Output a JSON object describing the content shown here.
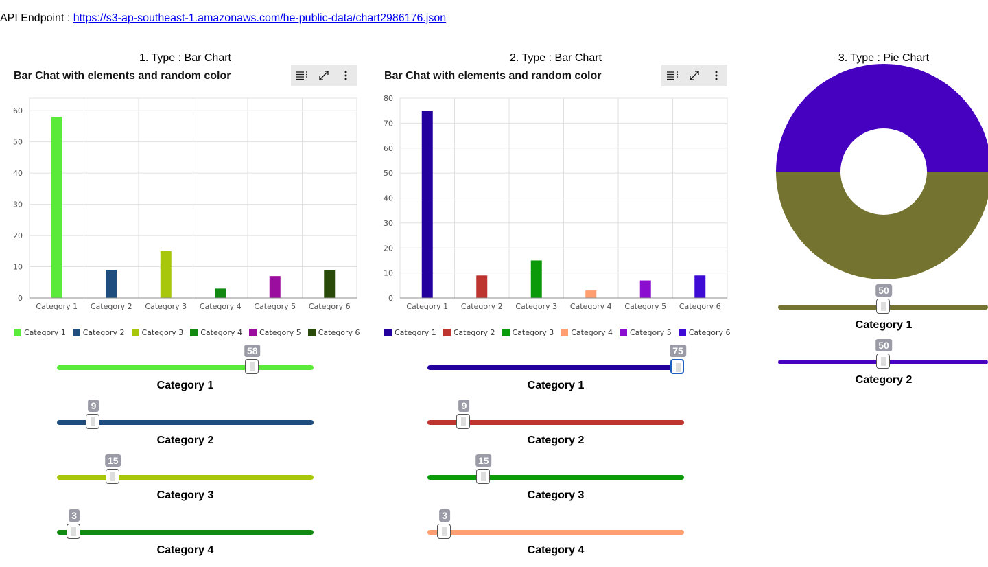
{
  "api": {
    "label": "API Endpoint : ",
    "url": "https://s3-ap-southeast-1.amazonaws.com/he-public-data/chart2986176.json"
  },
  "charts": [
    {
      "type_title": "1. Type : Bar Chart",
      "title": "Bar Chat with elements and random color",
      "toolbar": {
        "icons": [
          "table-icon",
          "expand-icon",
          "overflow-menu-icon"
        ]
      },
      "chart_data": {
        "type": "bar",
        "title": "Bar Chat with elements and random color",
        "categories": [
          "Category 1",
          "Category 2",
          "Category 3",
          "Category 4",
          "Category 5",
          "Category 6"
        ],
        "values": [
          58,
          9,
          15,
          3,
          7,
          9
        ],
        "colors": [
          "#5aeb3a",
          "#1f4e7e",
          "#a9c70a",
          "#128a12",
          "#9b0d9e",
          "#2a4a0a"
        ],
        "ylim": [
          0,
          64
        ],
        "yticks": [
          0,
          10,
          20,
          30,
          40,
          50,
          60
        ],
        "grid": true,
        "legend": "bottom-left"
      }
    },
    {
      "type_title": "2. Type : Bar Chart",
      "title": "Bar Chat with elements and random color",
      "toolbar": {
        "icons": [
          "table-icon",
          "expand-icon",
          "overflow-menu-icon"
        ]
      },
      "chart_data": {
        "type": "bar",
        "title": "Bar Chat with elements and random color",
        "categories": [
          "Category 1",
          "Category 2",
          "Category 3",
          "Category 4",
          "Category 5",
          "Category 6"
        ],
        "values": [
          75,
          9,
          15,
          3,
          7,
          9
        ],
        "colors": [
          "#23009e",
          "#be3530",
          "#0a9a0a",
          "#ff9e6e",
          "#8b0ed0",
          "#3e0ad6"
        ],
        "ylim": [
          0,
          80
        ],
        "yticks": [
          0,
          10,
          20,
          30,
          40,
          50,
          60,
          70,
          80
        ],
        "grid": true,
        "legend": "bottom-left"
      }
    },
    {
      "type_title": "3. Type : Pie Chart",
      "chart_data": {
        "type": "pie",
        "categories": [
          "Category 1",
          "Category 2"
        ],
        "values": [
          50,
          50
        ],
        "colors": [
          "#747430",
          "#4600bf"
        ]
      }
    }
  ],
  "sliders": {
    "chart1": [
      {
        "label": "Category 1",
        "value": 58,
        "max": 75,
        "color": "#5aeb3a"
      },
      {
        "label": "Category 2",
        "value": 9,
        "max": 75,
        "color": "#1f4e7e"
      },
      {
        "label": "Category 3",
        "value": 15,
        "max": 75,
        "color": "#a9c70a"
      },
      {
        "label": "Category 4",
        "value": 3,
        "max": 75,
        "color": "#128a12"
      }
    ],
    "chart2": [
      {
        "label": "Category 1",
        "value": 75,
        "max": 75,
        "color": "#23009e",
        "active": true
      },
      {
        "label": "Category 2",
        "value": 9,
        "max": 75,
        "color": "#be3530"
      },
      {
        "label": "Category 3",
        "value": 15,
        "max": 75,
        "color": "#0a9a0a"
      },
      {
        "label": "Category 4",
        "value": 3,
        "max": 75,
        "color": "#ff9e6e"
      }
    ],
    "chart3": [
      {
        "label": "Category 1",
        "value": 50,
        "max": 100,
        "color": "#747430"
      },
      {
        "label": "Category 2",
        "value": 50,
        "max": 100,
        "color": "#4600bf"
      }
    ]
  }
}
